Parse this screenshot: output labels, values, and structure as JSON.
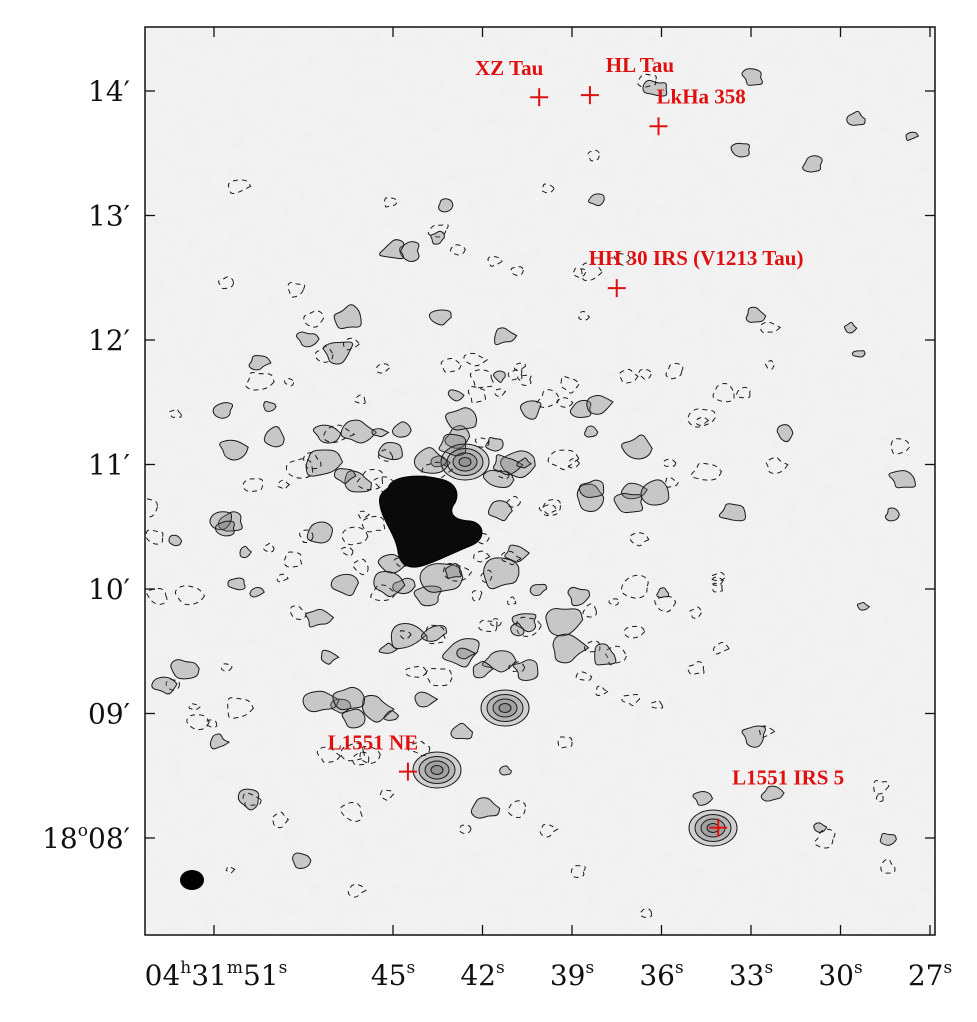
{
  "chart_data": {
    "type": "scatter",
    "title": "",
    "xlabel": "",
    "ylabel": "",
    "xlim": [
      "04h31m52.3s",
      "04h31m26.7s"
    ],
    "ylim": [
      "18d07m17s",
      "18d14m27s"
    ],
    "x_ticks": [
      {
        "h": "04",
        "m": "31",
        "s": "51",
        "full": true
      },
      {
        "s": "45"
      },
      {
        "s": "42"
      },
      {
        "s": "39"
      },
      {
        "s": "36"
      },
      {
        "s": "33"
      },
      {
        "s": "30"
      },
      {
        "s": "27"
      }
    ],
    "y_ticks": [
      {
        "d": "18",
        "m": "08"
      },
      {
        "m": "09"
      },
      {
        "m": "10"
      },
      {
        "m": "11"
      },
      {
        "m": "12"
      },
      {
        "m": "13"
      },
      {
        "m": "14"
      }
    ],
    "sources": [
      {
        "name": "XZ Tau",
        "ra": "04h31m40.1s",
        "dec": "18d13m57s",
        "label_position": "above"
      },
      {
        "name": "HL Tau",
        "ra": "04h31m38.4s",
        "dec": "18d13m58s",
        "label_position": "above"
      },
      {
        "name": "LkHa 358",
        "ra": "04h31m36.1s",
        "dec": "18d13m43s",
        "label_position": "above-right"
      },
      {
        "name": "HH 30 IRS (V1213 Tau)",
        "ra": "04h31m37.5s",
        "dec": "18d12m25s",
        "label_position": "above-right"
      },
      {
        "name": "L1551 NE",
        "ra": "04h31m44.5s",
        "dec": "18d08m32s",
        "label_position": "above"
      },
      {
        "name": "L1551 IRS 5",
        "ra": "04h31m34.1s",
        "dec": "18d08m05s",
        "label_position": "above"
      }
    ],
    "beam": {
      "shape": "ellipse",
      "position": "bottom-left"
    },
    "contours": "positive solid, negative dashed",
    "grayscale": "intensity map, emission peak saturated near 04h31m44s +18d10m30s",
    "grid": false,
    "legend": "none"
  },
  "colors": {
    "annotation": "#e01010",
    "contour": "#1a1a1a",
    "background": "#efefef"
  }
}
